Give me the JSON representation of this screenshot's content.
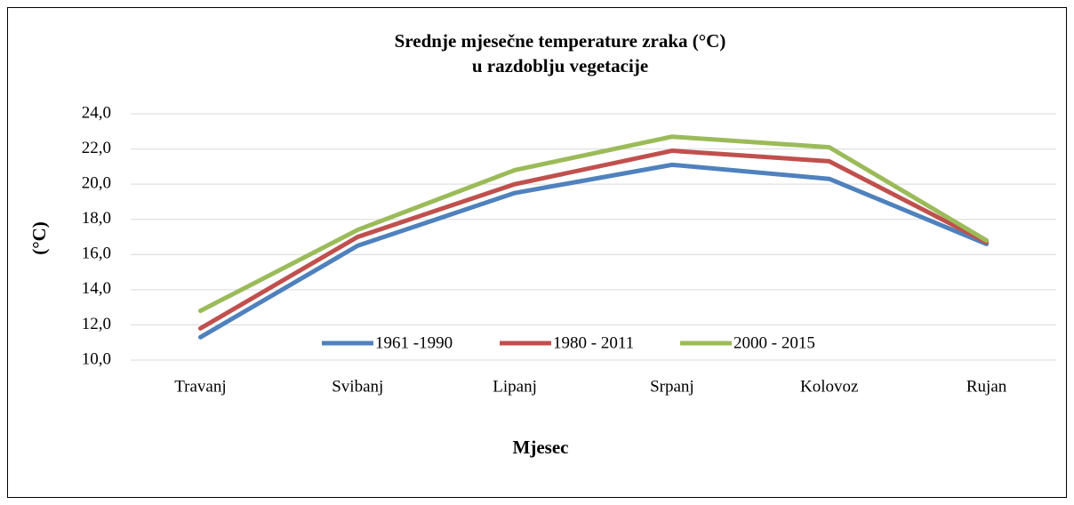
{
  "chart_data": {
    "type": "line",
    "title": "Srednje mjesečne temperature zraka (°C)",
    "subtitle": "u razdoblju vegetacije",
    "x_label": "Mjesec",
    "y_label": "(°C)",
    "categories": [
      "Travanj",
      "Svibanj",
      "Lipanj",
      "Srpanj",
      "Kolovoz",
      "Rujan"
    ],
    "series": [
      {
        "name": "1961 -1990",
        "color": "#4f81bd",
        "values": [
          11.3,
          16.5,
          19.5,
          21.1,
          20.3,
          16.6
        ]
      },
      {
        "name": "1980 - 2011",
        "color": "#c0504d",
        "values": [
          11.8,
          17.0,
          20.0,
          21.9,
          21.3,
          16.7
        ]
      },
      {
        "name": "2000 - 2015",
        "color": "#9bbb59",
        "values": [
          12.8,
          17.4,
          20.8,
          22.7,
          22.1,
          16.8
        ]
      }
    ],
    "ylim": [
      10,
      24
    ],
    "yticks": [
      {
        "value": 10,
        "label": "10,0"
      },
      {
        "value": 12,
        "label": "12,0"
      },
      {
        "value": 14,
        "label": "14,0"
      },
      {
        "value": 16,
        "label": "16,0"
      },
      {
        "value": 18,
        "label": "18,0"
      },
      {
        "value": 20,
        "label": "20,0"
      },
      {
        "value": 22,
        "label": "22,0"
      },
      {
        "value": 24,
        "label": "24,0"
      }
    ],
    "grid": true,
    "legend": "bottom"
  }
}
